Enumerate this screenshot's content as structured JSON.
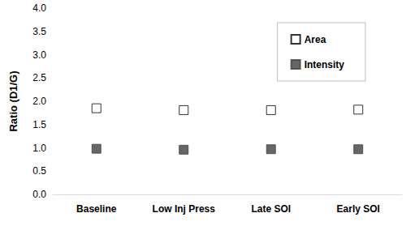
{
  "chart_data": {
    "type": "scatter",
    "y_label": "Ratio (D1/G)",
    "categories": [
      "Baseline",
      "Low Inj Press",
      "Late SOI",
      "Early SOI"
    ],
    "series": [
      {
        "name": "Area",
        "color": "#000000",
        "marker": "open_square",
        "values": [
          1.85,
          1.81,
          1.81,
          1.82
        ]
      },
      {
        "name": "Intensity",
        "color": "#404040",
        "marker": "square",
        "values": [
          0.98,
          0.96,
          0.97,
          0.97
        ]
      }
    ],
    "ylim": [
      0,
      4
    ],
    "yticks": [
      {
        "value": 0,
        "label": "0.0"
      },
      {
        "value": 0.5,
        "label": "0.5"
      },
      {
        "value": 1,
        "label": "1.0"
      },
      {
        "value": 1.5,
        "label": "1.5"
      },
      {
        "value": 2,
        "label": "2.0"
      },
      {
        "value": 2.5,
        "label": "2.5"
      },
      {
        "value": 3,
        "label": "3.0"
      },
      {
        "value": 3.5,
        "label": "3.5"
      },
      {
        "value": 4,
        "label": "4.0"
      }
    ],
    "grid": false,
    "legend": "top-right"
  }
}
